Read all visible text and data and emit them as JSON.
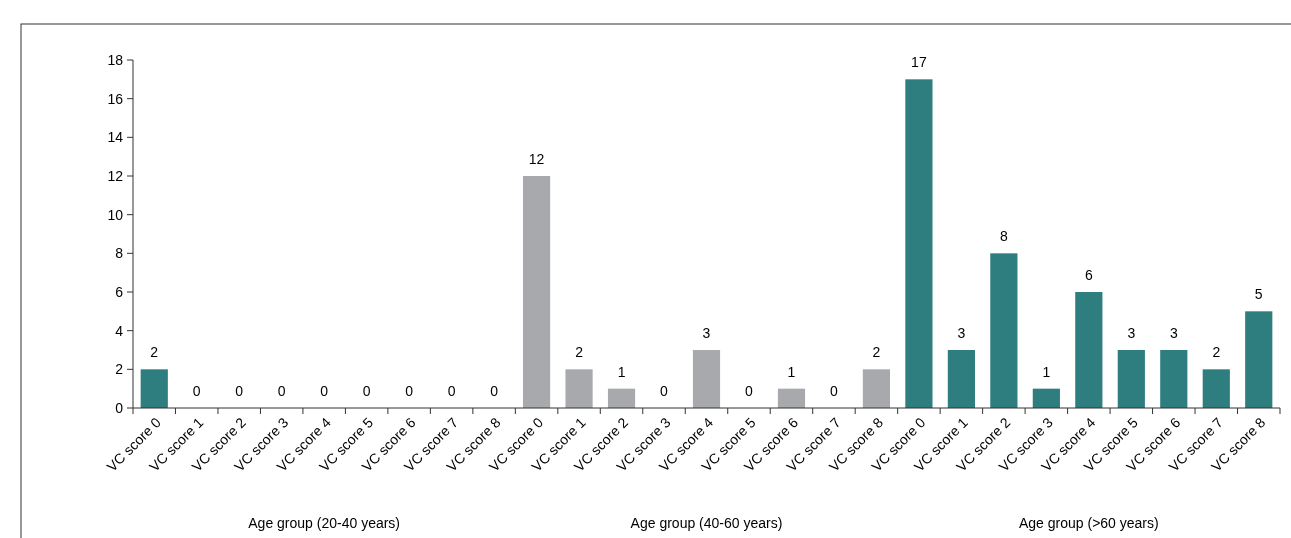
{
  "chart_data": {
    "type": "bar",
    "categories": [
      "VC score 0",
      "VC score 1",
      "VC score 2",
      "VC score 3",
      "VC score 4",
      "VC score 5",
      "VC score 6",
      "VC score 7",
      "VC score 8",
      "VC score 0",
      "VC score 1",
      "VC score 2",
      "VC score 3",
      "VC score 4",
      "VC score 5",
      "VC score 6",
      "VC score 7",
      "VC score 8",
      "VC score 0",
      "VC score 1",
      "VC score 2",
      "VC score 3",
      "VC score 4",
      "VC score 5",
      "VC score 6",
      "VC score 7",
      "VC score 8"
    ],
    "values": [
      2,
      0,
      0,
      0,
      0,
      0,
      0,
      0,
      0,
      12,
      2,
      1,
      0,
      3,
      0,
      1,
      0,
      2,
      17,
      3,
      8,
      1,
      6,
      3,
      3,
      2,
      5
    ],
    "colors": [
      "#2e7d7f",
      "#2e7d7f",
      "#2e7d7f",
      "#2e7d7f",
      "#2e7d7f",
      "#2e7d7f",
      "#2e7d7f",
      "#2e7d7f",
      "#2e7d7f",
      "#a7a9ac",
      "#a7a9ac",
      "#a7a9ac",
      "#a7a9ac",
      "#a7a9ac",
      "#a7a9ac",
      "#a7a9ac",
      "#a7a9ac",
      "#a7a9ac",
      "#2e7d7f",
      "#2e7d7f",
      "#2e7d7f",
      "#2e7d7f",
      "#2e7d7f",
      "#2e7d7f",
      "#2e7d7f",
      "#2e7d7f",
      "#2e7d7f"
    ],
    "ylim": [
      0,
      18
    ],
    "yticks": [
      0,
      2,
      4,
      6,
      8,
      10,
      12,
      14,
      16,
      18
    ],
    "data_labels": true,
    "grid": false,
    "annotations": [
      "Age group (20-40 years)",
      "Age group (40-60 years)",
      "Age group (>60 years)"
    ]
  }
}
